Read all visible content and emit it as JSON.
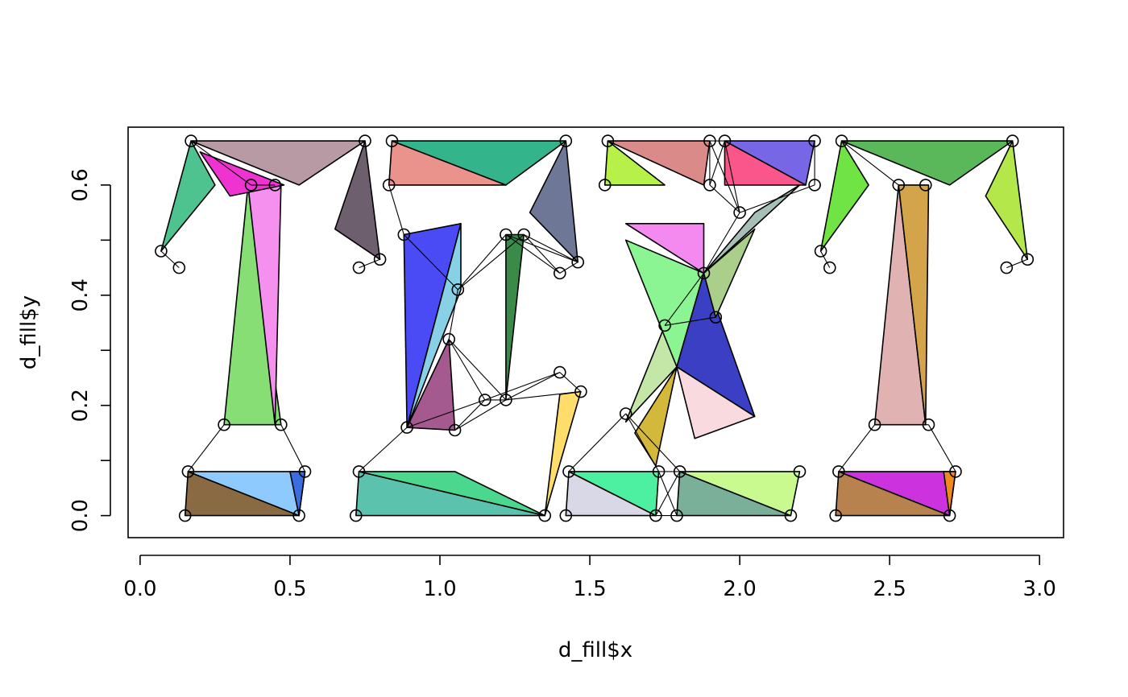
{
  "chart_data": {
    "type": "scatter",
    "title": "",
    "xlabel": "d_fill$x",
    "ylabel": "d_fill$y",
    "xlim": [
      -0.04,
      3.08
    ],
    "ylim": [
      -0.04,
      0.705
    ],
    "x_ticks": [
      0.0,
      0.5,
      1.0,
      1.5,
      2.0,
      2.5,
      3.0
    ],
    "x_tick_labels": [
      "0.0",
      "0.5",
      "1.0",
      "1.5",
      "2.0",
      "2.5",
      "3.0"
    ],
    "y_ticks": [
      0.0,
      0.1,
      0.2,
      0.3,
      0.4,
      0.5,
      0.6
    ],
    "y_tick_labels": [
      "0.0",
      "",
      "0.2",
      "",
      "0.4",
      "",
      "0.6"
    ],
    "grid": false,
    "legend": "none",
    "series": [
      {
        "glyph": "T",
        "points": [
          [
            0.15,
            0.0
          ],
          [
            0.53,
            0.0
          ],
          [
            0.16,
            0.08
          ],
          [
            0.55,
            0.08
          ],
          [
            0.28,
            0.165
          ],
          [
            0.47,
            0.165
          ],
          [
            0.37,
            0.6
          ],
          [
            0.45,
            0.6
          ],
          [
            0.07,
            0.48
          ],
          [
            0.13,
            0.45
          ],
          [
            0.17,
            0.68
          ],
          [
            0.75,
            0.68
          ],
          [
            0.73,
            0.45
          ],
          [
            0.8,
            0.465
          ]
        ],
        "polygons": [
          {
            "color": "#8a6a42",
            "points": [
              [
                0.15,
                0.0
              ],
              [
                0.53,
                0.0
              ],
              [
                0.16,
                0.08
              ]
            ]
          },
          {
            "color": "#8fcaff",
            "points": [
              [
                0.16,
                0.08
              ],
              [
                0.53,
                0.0
              ],
              [
                0.55,
                0.08
              ]
            ]
          },
          {
            "color": "#3a6ee0",
            "points": [
              [
                0.5,
                0.08
              ],
              [
                0.55,
                0.08
              ],
              [
                0.53,
                0.0
              ]
            ]
          },
          {
            "color": "#86de74",
            "points": [
              [
                0.28,
                0.165
              ],
              [
                0.47,
                0.165
              ],
              [
                0.36,
                0.6
              ]
            ]
          },
          {
            "color": "#f590ee",
            "points": [
              [
                0.36,
                0.6
              ],
              [
                0.47,
                0.6
              ],
              [
                0.45,
                0.165
              ]
            ]
          },
          {
            "color": "#4ec390",
            "points": [
              [
                0.17,
                0.68
              ],
              [
                0.07,
                0.48
              ],
              [
                0.25,
                0.6
              ]
            ]
          },
          {
            "color": "#b79aa3",
            "points": [
              [
                0.17,
                0.68
              ],
              [
                0.75,
                0.68
              ],
              [
                0.53,
                0.6
              ]
            ]
          },
          {
            "color": "#ef33d0",
            "points": [
              [
                0.2,
                0.66
              ],
              [
                0.48,
                0.6
              ],
              [
                0.3,
                0.58
              ]
            ]
          },
          {
            "color": "#6e5f6e",
            "points": [
              [
                0.75,
                0.68
              ],
              [
                0.8,
                0.465
              ],
              [
                0.65,
                0.52
              ]
            ]
          }
        ]
      },
      {
        "glyph": "E",
        "points": [
          [
            0.72,
            0.0
          ],
          [
            1.35,
            0.0
          ],
          [
            0.73,
            0.08
          ],
          [
            0.83,
            0.6
          ],
          [
            0.84,
            0.68
          ],
          [
            1.42,
            0.68
          ],
          [
            1.46,
            0.46
          ],
          [
            1.4,
            0.44
          ],
          [
            0.88,
            0.51
          ],
          [
            0.89,
            0.16
          ],
          [
            1.05,
            0.155
          ],
          [
            1.22,
            0.51
          ],
          [
            1.28,
            0.51
          ],
          [
            1.15,
            0.21
          ],
          [
            1.22,
            0.21
          ],
          [
            1.4,
            0.26
          ],
          [
            1.47,
            0.225
          ],
          [
            1.06,
            0.41
          ],
          [
            1.03,
            0.32
          ]
        ],
        "polygons": [
          {
            "color": "#5bc2ae",
            "points": [
              [
                0.72,
                0.0
              ],
              [
                1.35,
                0.0
              ],
              [
                0.73,
                0.08
              ]
            ]
          },
          {
            "color": "#4bd88e",
            "points": [
              [
                0.73,
                0.08
              ],
              [
                1.35,
                0.0
              ],
              [
                1.05,
                0.08
              ]
            ]
          },
          {
            "color": "#ffdd6a",
            "points": [
              [
                1.35,
                0.0
              ],
              [
                1.47,
                0.225
              ],
              [
                1.4,
                0.22
              ]
            ]
          },
          {
            "color": "#4b4bf5",
            "points": [
              [
                0.89,
                0.16
              ],
              [
                0.88,
                0.51
              ],
              [
                1.07,
                0.53
              ]
            ]
          },
          {
            "color": "#a45a8e",
            "points": [
              [
                0.89,
                0.16
              ],
              [
                1.05,
                0.155
              ],
              [
                1.03,
                0.32
              ]
            ]
          },
          {
            "color": "#87d0e6",
            "points": [
              [
                0.89,
                0.16
              ],
              [
                1.07,
                0.53
              ],
              [
                1.07,
                0.41
              ]
            ]
          },
          {
            "color": "#3a8a4a",
            "points": [
              [
                1.22,
                0.51
              ],
              [
                1.28,
                0.51
              ],
              [
                1.22,
                0.21
              ]
            ]
          },
          {
            "color": "#ea928c",
            "points": [
              [
                0.84,
                0.68
              ],
              [
                0.83,
                0.6
              ],
              [
                1.22,
                0.6
              ]
            ]
          },
          {
            "color": "#34b48a",
            "points": [
              [
                0.84,
                0.68
              ],
              [
                1.42,
                0.68
              ],
              [
                1.22,
                0.6
              ]
            ]
          },
          {
            "color": "#6e7896",
            "points": [
              [
                1.42,
                0.68
              ],
              [
                1.46,
                0.46
              ],
              [
                1.3,
                0.55
              ]
            ]
          }
        ]
      },
      {
        "glyph": "X",
        "points": [
          [
            1.42,
            0.0
          ],
          [
            1.72,
            0.0
          ],
          [
            1.43,
            0.08
          ],
          [
            1.73,
            0.08
          ],
          [
            1.79,
            0.0
          ],
          [
            2.17,
            0.0
          ],
          [
            1.8,
            0.08
          ],
          [
            2.2,
            0.08
          ],
          [
            1.62,
            0.185
          ],
          [
            1.75,
            0.345
          ],
          [
            1.92,
            0.36
          ],
          [
            1.88,
            0.44
          ],
          [
            1.55,
            0.6
          ],
          [
            1.9,
            0.6
          ],
          [
            1.56,
            0.68
          ],
          [
            1.9,
            0.68
          ],
          [
            1.95,
            0.68
          ],
          [
            2.25,
            0.68
          ],
          [
            2.25,
            0.6
          ],
          [
            2.0,
            0.55
          ]
        ],
        "polygons": [
          {
            "color": "#d8d8e6",
            "points": [
              [
                1.42,
                0.0
              ],
              [
                1.72,
                0.0
              ],
              [
                1.43,
                0.08
              ]
            ]
          },
          {
            "color": "#4cf0a0",
            "points": [
              [
                1.43,
                0.08
              ],
              [
                1.72,
                0.0
              ],
              [
                1.73,
                0.08
              ]
            ]
          },
          {
            "color": "#7ab09a",
            "points": [
              [
                1.79,
                0.0
              ],
              [
                2.17,
                0.0
              ],
              [
                1.8,
                0.08
              ]
            ]
          },
          {
            "color": "#c8fa90",
            "points": [
              [
                1.8,
                0.08
              ],
              [
                2.17,
                0.0
              ],
              [
                2.2,
                0.08
              ]
            ]
          },
          {
            "color": "#c4e6a6",
            "points": [
              [
                1.62,
                0.17
              ],
              [
                1.75,
                0.345
              ],
              [
                1.79,
                0.27
              ]
            ]
          },
          {
            "color": "#d4b83a",
            "points": [
              [
                1.65,
                0.15
              ],
              [
                1.79,
                0.27
              ],
              [
                1.72,
                0.09
              ]
            ]
          },
          {
            "color": "#8bf594",
            "points": [
              [
                1.62,
                0.5
              ],
              [
                1.88,
                0.44
              ],
              [
                1.79,
                0.27
              ]
            ]
          },
          {
            "color": "#3a3fc4",
            "points": [
              [
                1.88,
                0.44
              ],
              [
                1.79,
                0.27
              ],
              [
                2.05,
                0.18
              ]
            ]
          },
          {
            "color": "#f9dadf",
            "points": [
              [
                1.79,
                0.27
              ],
              [
                2.05,
                0.18
              ],
              [
                1.85,
                0.14
              ]
            ]
          },
          {
            "color": "#a9cf8a",
            "points": [
              [
                1.88,
                0.44
              ],
              [
                1.92,
                0.36
              ],
              [
                2.05,
                0.52
              ]
            ]
          },
          {
            "color": "#a6c0b8",
            "points": [
              [
                1.88,
                0.44
              ],
              [
                2.05,
                0.55
              ],
              [
                2.2,
                0.6
              ]
            ]
          },
          {
            "color": "#f489f0",
            "points": [
              [
                1.62,
                0.53
              ],
              [
                1.88,
                0.53
              ],
              [
                1.88,
                0.44
              ]
            ]
          },
          {
            "color": "#db8a8a",
            "points": [
              [
                1.56,
                0.68
              ],
              [
                1.9,
                0.68
              ],
              [
                1.88,
                0.6
              ]
            ]
          },
          {
            "color": "#b6f048",
            "points": [
              [
                1.56,
                0.68
              ],
              [
                1.55,
                0.6
              ],
              [
                1.75,
                0.6
              ]
            ]
          },
          {
            "color": "#fa568c",
            "points": [
              [
                1.95,
                0.68
              ],
              [
                1.95,
                0.6
              ],
              [
                2.22,
                0.6
              ]
            ]
          },
          {
            "color": "#7766e6",
            "points": [
              [
                1.95,
                0.68
              ],
              [
                2.25,
                0.68
              ],
              [
                2.22,
                0.6
              ]
            ]
          }
        ]
      },
      {
        "glyph": "T",
        "points": [
          [
            2.32,
            0.0
          ],
          [
            2.7,
            0.0
          ],
          [
            2.33,
            0.08
          ],
          [
            2.72,
            0.08
          ],
          [
            2.45,
            0.165
          ],
          [
            2.63,
            0.165
          ],
          [
            2.53,
            0.6
          ],
          [
            2.62,
            0.6
          ],
          [
            2.27,
            0.48
          ],
          [
            2.3,
            0.45
          ],
          [
            2.34,
            0.68
          ],
          [
            2.91,
            0.68
          ],
          [
            2.89,
            0.45
          ],
          [
            2.96,
            0.465
          ]
        ],
        "polygons": [
          {
            "color": "#b8824e",
            "points": [
              [
                2.32,
                0.0
              ],
              [
                2.7,
                0.0
              ],
              [
                2.33,
                0.08
              ]
            ]
          },
          {
            "color": "#cc33de",
            "points": [
              [
                2.33,
                0.08
              ],
              [
                2.7,
                0.0
              ],
              [
                2.72,
                0.08
              ]
            ]
          },
          {
            "color": "#f08a1e",
            "points": [
              [
                2.68,
                0.08
              ],
              [
                2.72,
                0.08
              ],
              [
                2.7,
                0.0
              ]
            ]
          },
          {
            "color": "#e0b2b2",
            "points": [
              [
                2.45,
                0.165
              ],
              [
                2.62,
                0.165
              ],
              [
                2.53,
                0.6
              ]
            ]
          },
          {
            "color": "#d4a44a",
            "points": [
              [
                2.53,
                0.6
              ],
              [
                2.63,
                0.6
              ],
              [
                2.62,
                0.165
              ]
            ]
          },
          {
            "color": "#70e444",
            "points": [
              [
                2.34,
                0.68
              ],
              [
                2.27,
                0.48
              ],
              [
                2.43,
                0.6
              ]
            ]
          },
          {
            "color": "#5ab85a",
            "points": [
              [
                2.34,
                0.68
              ],
              [
                2.91,
                0.68
              ],
              [
                2.7,
                0.6
              ]
            ]
          },
          {
            "color": "#b4e84a",
            "points": [
              [
                2.91,
                0.68
              ],
              [
                2.96,
                0.465
              ],
              [
                2.82,
                0.58
              ]
            ]
          }
        ]
      }
    ]
  }
}
